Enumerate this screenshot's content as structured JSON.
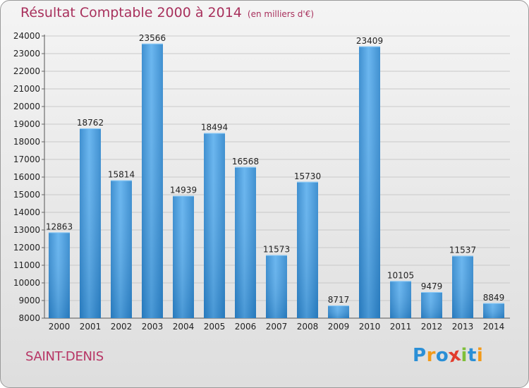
{
  "title": "Résultat Comptable 2000 à 2014",
  "subtitle": "(en milliers d'€)",
  "footer_name": "SAINT-DENIS",
  "logo": {
    "letters": [
      "P",
      "r",
      "o",
      "x",
      "i",
      "t",
      "i"
    ],
    "colors": [
      "#2a8fd6",
      "#f29a1a",
      "#2a8fd6",
      "#e23b2c",
      "#7fbf3a",
      "#2a8fd6",
      "#f29a1a"
    ]
  },
  "colors": {
    "bar": "#4a9fe0",
    "title": "#a8305c",
    "name": "#b73565",
    "grid": "#c9c9c9"
  },
  "chart_data": {
    "type": "bar",
    "categories": [
      "2000",
      "2001",
      "2002",
      "2003",
      "2004",
      "2005",
      "2006",
      "2007",
      "2008",
      "2009",
      "2010",
      "2011",
      "2012",
      "2013",
      "2014"
    ],
    "values": [
      12863,
      18762,
      15814,
      23566,
      14939,
      18494,
      16568,
      11573,
      15730,
      8717,
      23409,
      10105,
      9479,
      11537,
      8849
    ],
    "ylim": [
      8000,
      24000
    ],
    "yticks": [
      8000,
      9000,
      10000,
      11000,
      12000,
      13000,
      14000,
      15000,
      16000,
      17000,
      18000,
      19000,
      20000,
      21000,
      22000,
      23000,
      24000
    ],
    "grid": true
  }
}
